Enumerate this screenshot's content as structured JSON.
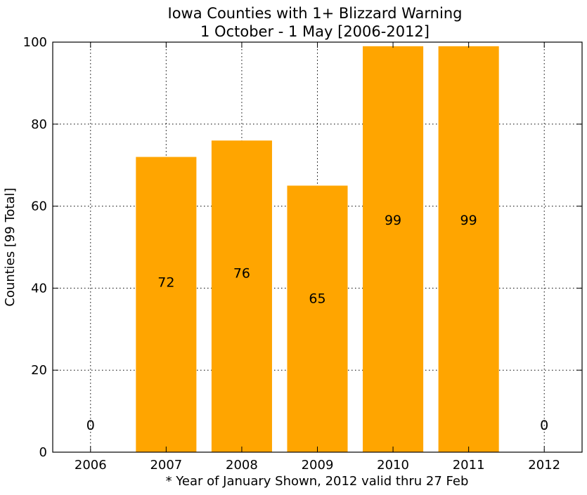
{
  "chart_data": {
    "type": "bar",
    "title": [
      "Iowa Counties with 1+ Blizzard Warning",
      "1 October - 1 May [2006-2012]"
    ],
    "xlabel": "* Year of January Shown, 2012 valid thru 27 Feb",
    "ylabel": "Counties [99 Total]",
    "categories": [
      "2006",
      "2007",
      "2008",
      "2009",
      "2010",
      "2011",
      "2012"
    ],
    "values": [
      0,
      72,
      76,
      65,
      99,
      99,
      0
    ],
    "data_labels": [
      "0",
      "72",
      "76",
      "65",
      "99",
      "99",
      "0"
    ],
    "ylim": [
      0,
      100
    ],
    "xlim": [
      2005.5,
      2012.5
    ],
    "yticks": [
      0,
      20,
      40,
      60,
      80,
      100
    ],
    "ytick_labels": [
      "0",
      "20",
      "40",
      "60",
      "80",
      "100"
    ],
    "bar_width": 0.8,
    "bar_color": "#ffa500",
    "grid": true,
    "grid_style": "dotted",
    "legend": "none"
  }
}
